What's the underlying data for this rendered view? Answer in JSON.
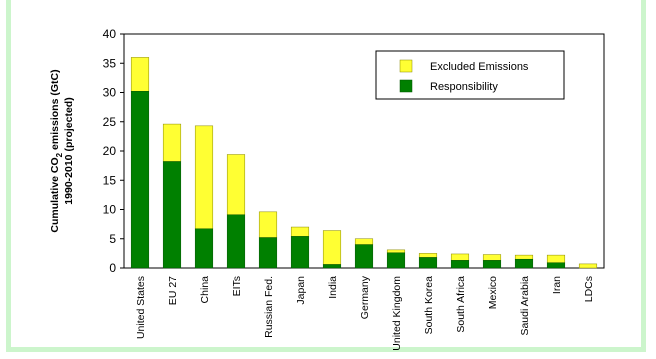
{
  "title_fragment": "",
  "chart_data": {
    "type": "bar",
    "stacked": true,
    "categories": [
      "United States",
      "EU 27",
      "China",
      "EITs",
      "Russian Fed.",
      "Japan",
      "India",
      "Germany",
      "United Kingdom",
      "South Korea",
      "South Africa",
      "Mexico",
      "Saudi Arabia",
      "Iran",
      "LDCs"
    ],
    "series": [
      {
        "name": "Responsibility",
        "color": "#008000",
        "values": [
          30.2,
          18.2,
          6.7,
          9.1,
          5.2,
          5.4,
          0.6,
          4.0,
          2.6,
          1.8,
          1.3,
          1.3,
          1.5,
          0.9,
          0.0
        ]
      },
      {
        "name": "Excluded Emissions",
        "color": "#ffff33",
        "values": [
          5.8,
          6.4,
          17.6,
          10.3,
          4.4,
          1.6,
          5.8,
          1.0,
          0.5,
          0.7,
          1.1,
          1.0,
          0.7,
          1.3,
          0.7
        ]
      }
    ],
    "ylabel_line1": "Cumulative CO",
    "ylabel_sub": "2",
    "ylabel_line1_end": " emissions (GtC)",
    "ylabel_line2": "1990-2010 (projected)",
    "ylim": [
      0,
      40
    ],
    "yticks": [
      0,
      5,
      10,
      15,
      20,
      25,
      30,
      35,
      40
    ],
    "legend": [
      "Excluded Emissions",
      "Responsibility"
    ],
    "legend_position": "top-right",
    "grid": false
  }
}
